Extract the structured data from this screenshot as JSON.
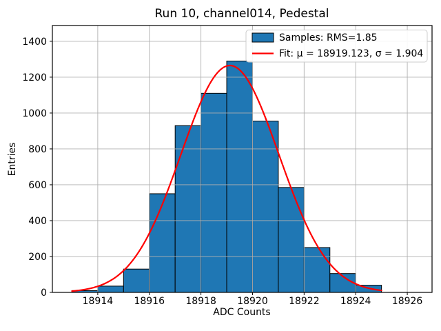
{
  "figure": {
    "title": "Run 10, channel014, Pedestal",
    "xlabel": "ADC Counts",
    "ylabel": "Entries"
  },
  "legend": {
    "position": "upper right",
    "entries": [
      {
        "type": "patch",
        "color": "#1f77b4",
        "edge_color": "#000000",
        "label": "Samples: RMS=1.85"
      },
      {
        "type": "line",
        "color": "#ff0000",
        "label": "Fit: μ = 18919.123, σ = 1.904"
      }
    ]
  },
  "chart_data": {
    "type": "bar",
    "subtype": "histogram",
    "title": "Run 10, channel014, Pedestal",
    "xlabel": "ADC Counts",
    "ylabel": "Entries",
    "bin_edges": [
      18913,
      18914,
      18915,
      18916,
      18917,
      18918,
      18919,
      18920,
      18921,
      18922,
      18923,
      18924,
      18925
    ],
    "counts": [
      10,
      35,
      130,
      550,
      930,
      1110,
      1290,
      955,
      585,
      250,
      105,
      40
    ],
    "bar_color": "#1f77b4",
    "bar_edge_color": "#000000",
    "fit_curve": {
      "shape": "gaussian",
      "mu": 18919.123,
      "sigma": 1.904,
      "amplitude": 1265,
      "color": "#ff0000",
      "x_range": [
        18913,
        18925
      ]
    },
    "xlim": [
      18912.24,
      18926.96
    ],
    "ylim": [
      0,
      1488
    ],
    "xticks": [
      18914,
      18916,
      18918,
      18920,
      18922,
      18924,
      18926
    ],
    "yticks": [
      0,
      200,
      400,
      600,
      800,
      1000,
      1200,
      1400
    ],
    "grid": true,
    "grid_color": "#b0b0b0",
    "legend_position": "upper right"
  }
}
